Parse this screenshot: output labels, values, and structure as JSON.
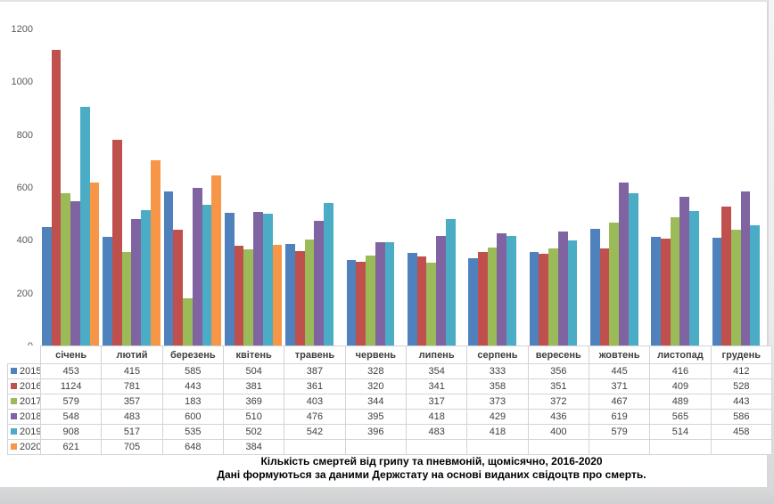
{
  "page": {
    "sheet_color": "#ffffff",
    "background_color": "#ececec"
  },
  "chart_data": {
    "type": "bar",
    "title": "Кількість смертей від грипу та пневмоній,  щомісячно,  2016-2020",
    "subtitle": "Дані формуються за даними Держстату  на основі  виданих свідоцтв про смерть.",
    "categories": [
      "січень",
      "лютий",
      "березень",
      "квітень",
      "травень",
      "червень",
      "липень",
      "серпень",
      "вересень",
      "жовтень",
      "листопад",
      "грудень"
    ],
    "series": [
      {
        "name": "2015",
        "color": "#4F81BD",
        "values": [
          453,
          415,
          585,
          504,
          387,
          328,
          354,
          333,
          356,
          445,
          416,
          412
        ]
      },
      {
        "name": "2016",
        "color": "#C0504D",
        "values": [
          1124,
          781,
          443,
          381,
          361,
          320,
          341,
          358,
          351,
          371,
          409,
          528
        ]
      },
      {
        "name": "2017",
        "color": "#9BBB59",
        "values": [
          579,
          357,
          183,
          369,
          403,
          344,
          317,
          373,
          372,
          467,
          489,
          443
        ]
      },
      {
        "name": "2018",
        "color": "#8064A2",
        "values": [
          548,
          483,
          600,
          510,
          476,
          395,
          418,
          429,
          436,
          619,
          565,
          586
        ]
      },
      {
        "name": "2019",
        "color": "#4BACC6",
        "values": [
          908,
          517,
          535,
          502,
          542,
          396,
          483,
          418,
          400,
          579,
          514,
          458
        ]
      },
      {
        "name": "2020",
        "color": "#F79646",
        "values": [
          621,
          705,
          648,
          384,
          null,
          null,
          null,
          null,
          null,
          null,
          null,
          null
        ]
      }
    ],
    "ylim": [
      0,
      1200
    ],
    "yticks": [
      0,
      200,
      400,
      600,
      800,
      1000,
      1200
    ],
    "grid": false,
    "legend_position": "table-rows-left",
    "axis_label_color": "#595959",
    "table_text_color": "#3f3f3f"
  }
}
